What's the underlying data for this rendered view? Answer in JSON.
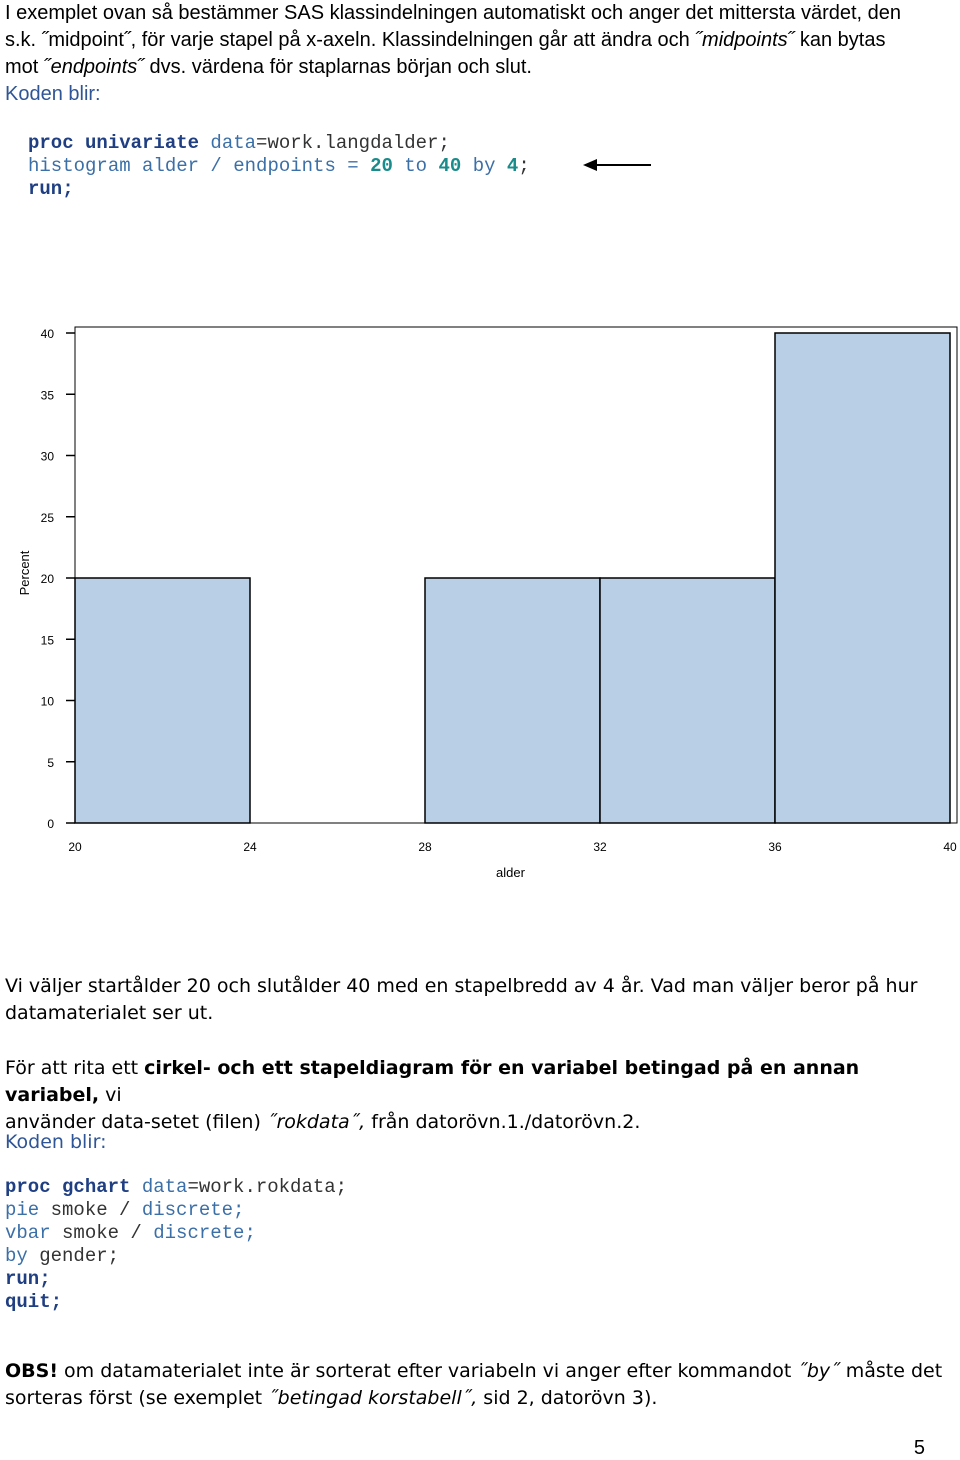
{
  "intro": {
    "line1": "I exemplet ovan så bestämmer SAS klassindelningen automatiskt och anger det mittersta värdet,  den",
    "line2a": "s.k. ˝midpoint˝, för varje stapel på x-axeln. Klassindelningen går att ändra och ",
    "line2b": "˝midpoints˝",
    "line2c": " kan bytas",
    "line3a": "mot ",
    "line3b": "˝endpoints˝",
    "line3c": " dvs. värdena för staplarnas början och slut.",
    "line4": "Koden blir:"
  },
  "code1": {
    "l1_kw": "proc univariate",
    "l1_rest_a": " data",
    "l1_rest_b": "=work.langdalder;",
    "l2_a": "histogram alder / endpoints = ",
    "l2_n1": "20",
    "l2_b": " to ",
    "l2_n2": "40",
    "l2_c": " by ",
    "l2_n3": "4",
    "l2_d": ";",
    "l3": "run;"
  },
  "chart_data": {
    "type": "bar",
    "bin_edges": [
      20,
      24,
      28,
      32,
      36,
      40
    ],
    "values": [
      20,
      0,
      20,
      20,
      40
    ],
    "xlabel": "alder",
    "ylabel": "Percent",
    "xticks": [
      "20",
      "24",
      "28",
      "32",
      "36",
      "40"
    ],
    "yticks": [
      "0",
      "5",
      "10",
      "15",
      "20",
      "25",
      "30",
      "35",
      "40"
    ],
    "ylim": [
      0,
      40
    ],
    "xlim": [
      20,
      40
    ],
    "bar_color": "#b8cfe6",
    "grid": false
  },
  "para2": {
    "line1": "Vi väljer startålder 20 och slutålder 40 med en stapelbredd av 4 år. Vad man väljer beror på hur",
    "line2": "datamaterialet ser ut."
  },
  "para3": {
    "a": "För att rita ett ",
    "b": "cirkel- och ett stapeldiagram för en variabel betingad på en annan variabel,",
    "c": " vi",
    "d": "använder data-setet (filen) ",
    "e": "˝rokdata˝,",
    "f": " från datorövn.1./datorövn.2."
  },
  "koden2": "Koden blir:",
  "code2": {
    "l1_kw": "proc gchart",
    "l1_a": " data",
    "l1_b": "=work.rokdata;",
    "l2_a": "pie",
    "l2_b": " smoke / ",
    "l2_c": "discrete;",
    "l3_a": "vbar",
    "l3_b": " smoke / ",
    "l3_c": "discrete;",
    "l4_a": "by",
    "l4_b": " gender;",
    "l5": "run;",
    "l6": "quit;"
  },
  "obs": {
    "a": "OBS!",
    "b": " om datamaterialet inte är sorterat efter variabeln vi anger efter kommandot ",
    "c": "˝by˝",
    "d": " måste det",
    "e": "sorteras först (se exemplet ",
    "f": "˝betingad korstabell˝,",
    "g": " sid 2, datorövn 3)."
  },
  "page_number": "5"
}
